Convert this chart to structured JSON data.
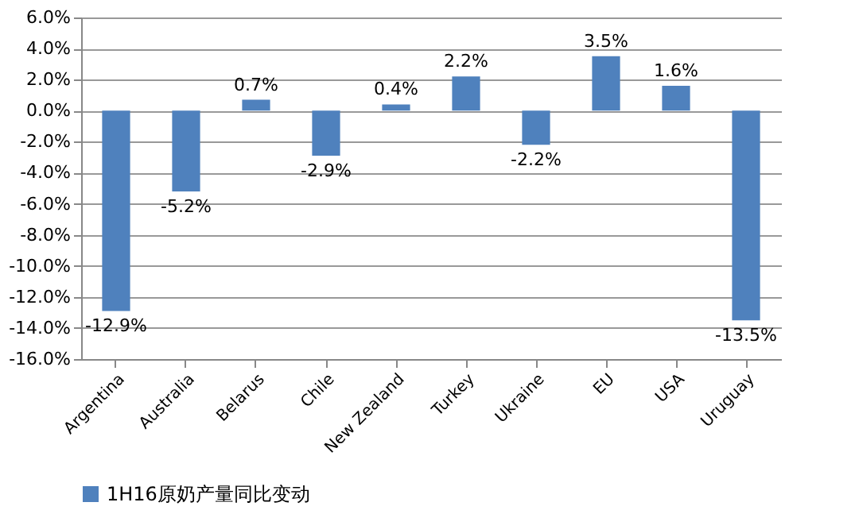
{
  "chart_data": {
    "type": "bar",
    "categories": [
      "Argentina",
      "Australia",
      "Belarus",
      "Chile",
      "New Zealand",
      "Turkey",
      "Ukraine",
      "EU",
      "USA",
      "Uruguay"
    ],
    "series": [
      {
        "name": "1H16原奶产量同比变动",
        "color": "#4f81bd",
        "values": [
          -12.9,
          -5.2,
          0.7,
          -2.9,
          0.4,
          2.2,
          -2.2,
          3.5,
          1.6,
          -13.5
        ],
        "value_labels": [
          "-12.9%",
          "-5.2%",
          "0.7%",
          "-2.9%",
          "0.4%",
          "2.2%",
          "-2.2%",
          "3.5%",
          "1.6%",
          "-13.5%"
        ]
      }
    ],
    "ylim": [
      -16,
      6
    ],
    "yticks": [
      {
        "value": -16,
        "label": "-16.0%"
      },
      {
        "value": -14,
        "label": "-14.0%"
      },
      {
        "value": -12,
        "label": "-12.0%"
      },
      {
        "value": -10,
        "label": "-10.0%"
      },
      {
        "value": -8,
        "label": "-8.0%"
      },
      {
        "value": -6,
        "label": "-6.0%"
      },
      {
        "value": -4,
        "label": "-4.0%"
      },
      {
        "value": -2,
        "label": "-2.0%"
      },
      {
        "value": 0,
        "label": "0.0%"
      },
      {
        "value": 2,
        "label": "2.0%"
      },
      {
        "value": 4,
        "label": "4.0%"
      },
      {
        "value": 6,
        "label": "6.0%"
      }
    ],
    "grid": "y",
    "legend": "bottom"
  }
}
